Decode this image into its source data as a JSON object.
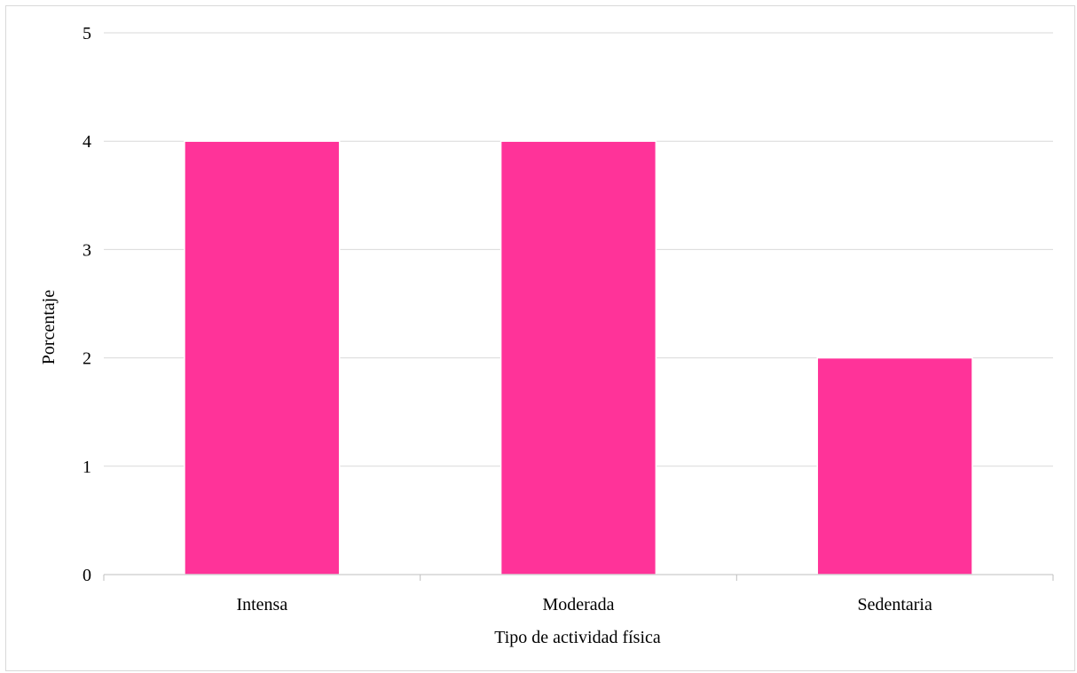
{
  "chart_data": {
    "type": "bar",
    "categories": [
      "Intensa",
      "Moderada",
      "Sedentaria"
    ],
    "values": [
      4,
      4,
      2
    ],
    "title": "",
    "xlabel": "Tipo de actividad física",
    "ylabel": "Porcentaje",
    "ylim": [
      0,
      5
    ],
    "yticks": [
      "0",
      "1",
      "2",
      "3",
      "4",
      "5"
    ],
    "bar_color": "#ff3399",
    "grid": true,
    "legend": "none"
  }
}
